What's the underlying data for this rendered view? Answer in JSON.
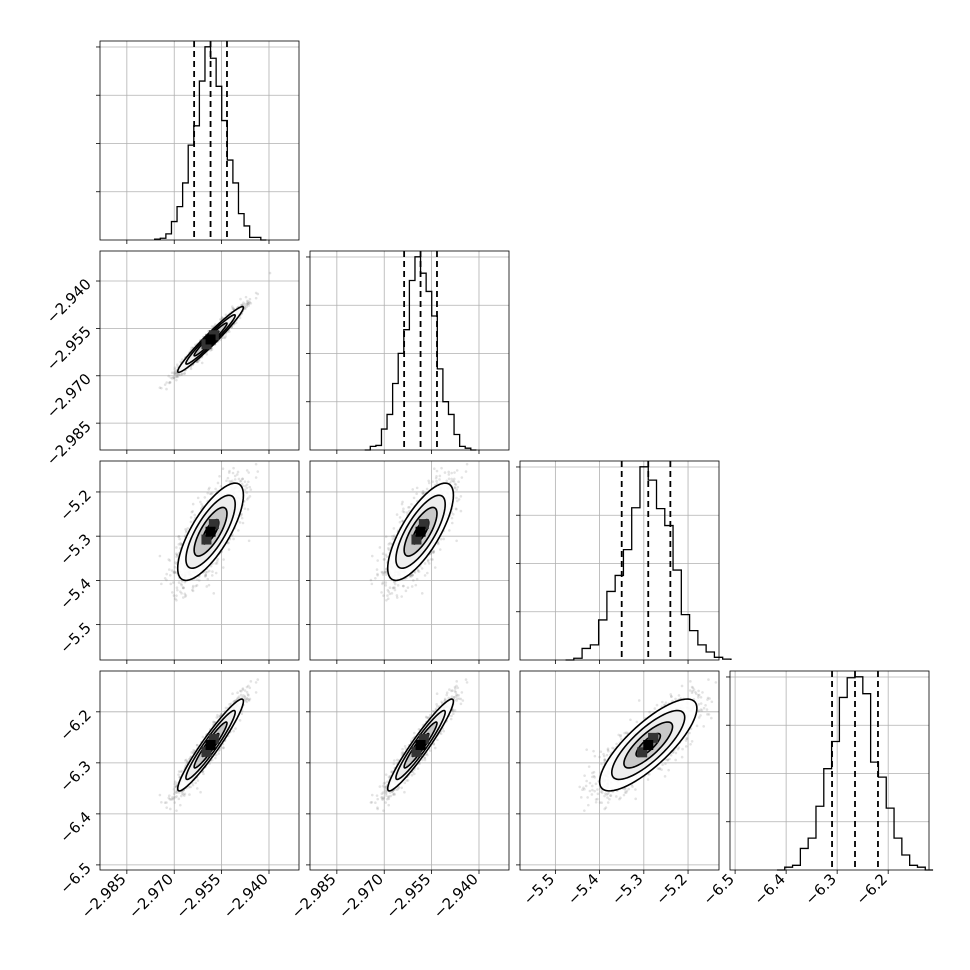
{
  "chart_data": {
    "type": "corner",
    "parameters": [
      {
        "mean": -2.9585,
        "sd": 0.0052,
        "q": [
          -2.9637,
          -2.9585,
          -2.9533
        ],
        "range": [
          -2.9935,
          -2.9305
        ],
        "ticks": [
          -2.985,
          -2.97,
          -2.955,
          -2.94
        ],
        "ticklabels": [
          "−2.985",
          "−2.970",
          "−2.955",
          "−2.940"
        ]
      },
      {
        "mean": -2.9585,
        "sd": 0.0052,
        "q": [
          -2.9637,
          -2.9585,
          -2.9533
        ],
        "range": [
          -2.9935,
          -2.9305
        ],
        "ticks": [
          -2.985,
          -2.97,
          -2.955,
          -2.94
        ],
        "ticklabels": [
          "−2.985",
          "−2.970",
          "−2.955",
          "−2.940"
        ]
      },
      {
        "mean": -5.29,
        "sd": 0.055,
        "q": [
          -5.35,
          -5.29,
          -5.24
        ],
        "range": [
          -5.58,
          -5.13
        ],
        "ticks": [
          -5.5,
          -5.4,
          -5.3,
          -5.2
        ],
        "ticklabels": [
          "−5.5",
          "−5.4",
          "−5.3",
          "−5.2"
        ]
      },
      {
        "mean": -6.265,
        "sd": 0.045,
        "q": [
          -6.31,
          -6.265,
          -6.22
        ],
        "range": [
          -6.51,
          -6.12
        ],
        "ticks": [
          -6.5,
          -6.4,
          -6.3,
          -6.2
        ],
        "ticklabels": [
          "−6.5",
          "−6.4",
          "−6.3",
          "−6.2"
        ]
      }
    ],
    "correlations": [
      [
        1.0,
        0.97,
        0.75,
        0.95
      ],
      [
        0.97,
        1.0,
        0.75,
        0.95
      ],
      [
        0.75,
        0.75,
        1.0,
        0.8
      ],
      [
        0.95,
        0.95,
        0.8,
        1.0
      ]
    ],
    "quantiles": [
      0.16,
      0.5,
      0.84
    ],
    "contour_levels_sigma": [
      0.5,
      1.0,
      1.5,
      2.0
    ],
    "histogram_bins": 20,
    "scatter_points": 1500,
    "grid": true,
    "colors": {
      "line": "#000000",
      "grid": "#b0b0b0",
      "points": "#7f7f7f"
    }
  }
}
